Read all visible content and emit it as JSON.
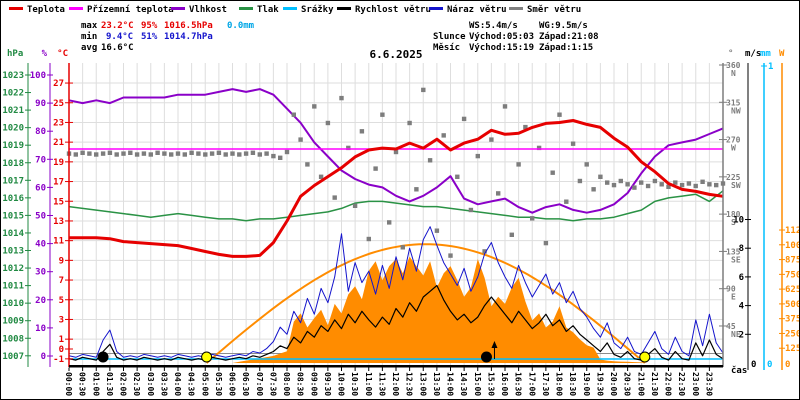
{
  "title": "6.6.2025",
  "legend": [
    {
      "label": "Teplota",
      "color": "#e60000"
    },
    {
      "label": "Přízemní teplota",
      "color": "#ff00ff"
    },
    {
      "label": "Vlhkost",
      "color": "#8a00c8"
    },
    {
      "label": "Tlak",
      "color": "#2a9245"
    },
    {
      "label": "Srážky",
      "color": "#00bfff"
    },
    {
      "label": "Rychlost větru",
      "color": "#000000"
    },
    {
      "label": "Náraz větru",
      "color": "#1414cc"
    },
    {
      "label": "Směr větru",
      "color": "#808080"
    }
  ],
  "stats": {
    "max_label": "max",
    "max_temp": "23.2°C",
    "max_hum": "95%",
    "max_pres": "1016.5hPa",
    "max_rain": "0.0mm",
    "min_label": "min",
    "min_temp": "9.4°C",
    "min_hum": "51%",
    "min_pres": "1014.7hPa",
    "avg_label": "avg",
    "avg_temp": "16.6°C",
    "ws": "WS:5.4m/s",
    "wg": "WG:9.5m/s",
    "sun_label": "Slunce",
    "sun_rise": "Východ:05:03",
    "sun_set": "Západ:21:08",
    "moon_label": "Měsíc",
    "moon_rise": "Východ:15:19",
    "moon_set": "Západ:1:15"
  },
  "xaxis": {
    "label": "čas",
    "ticks": [
      "00:00",
      "00:30",
      "01:00",
      "01:30",
      "02:00",
      "02:30",
      "03:00",
      "03:30",
      "04:00",
      "04:30",
      "05:00",
      "05:30",
      "06:00",
      "06:30",
      "07:00",
      "07:30",
      "08:00",
      "08:30",
      "09:00",
      "09:30",
      "10:00",
      "10:30",
      "11:00",
      "11:30",
      "12:00",
      "12:30",
      "13:00",
      "13:30",
      "14:00",
      "14:30",
      "15:00",
      "15:30",
      "16:00",
      "16:30",
      "17:00",
      "17:30",
      "18:00",
      "18:30",
      "19:00",
      "19:30",
      "20:00",
      "20:30",
      "21:00",
      "21:30",
      "22:00",
      "22:30",
      "23:00",
      "23:30"
    ]
  },
  "axes": {
    "hpa": {
      "title": "hPa",
      "color": "#218a43",
      "ticks": [
        1023,
        1022,
        1021,
        1020,
        1019,
        1018,
        1017,
        1016,
        1015,
        1014,
        1013,
        1012,
        1011,
        1010,
        1009,
        1008,
        1007
      ]
    },
    "percent": {
      "title": "%",
      "color": "#8a00c8",
      "ticks": [
        100,
        90,
        80,
        70,
        60,
        50,
        40,
        30,
        20,
        10,
        0
      ]
    },
    "temp_c": {
      "title": "°C",
      "color": "#e60000",
      "ticks": [
        27,
        25,
        23,
        21,
        19,
        17,
        15,
        13,
        11,
        9,
        7,
        5,
        3,
        1,
        0,
        -1
      ]
    },
    "deg": {
      "title": "°",
      "color": "#7d7d7d",
      "ticks": [
        [
          360,
          "N"
        ],
        [
          315,
          "NW"
        ],
        [
          270,
          "W"
        ],
        [
          225,
          "SW"
        ],
        [
          180,
          "S"
        ],
        [
          135,
          "SE"
        ],
        [
          90,
          "E"
        ],
        [
          45,
          "NE"
        ]
      ]
    },
    "ms": {
      "title": "m/s",
      "color": "#000000",
      "ticks": [
        10,
        8,
        6,
        4,
        2
      ]
    },
    "mm": {
      "title": "mm",
      "color": "#00bfff",
      "ticks": [
        1
      ]
    },
    "w": {
      "title": "W",
      "color": "#ff8c00",
      "ticks": [
        1125,
        1000,
        875,
        750,
        625,
        500,
        375,
        250,
        125
      ]
    }
  },
  "chart_data": {
    "type": "line",
    "x_unit": "hours",
    "x_range": [
      0,
      24
    ],
    "grid": true,
    "series": [
      {
        "name": "teplota",
        "color": "#e60000",
        "axis": "temp_c",
        "width": 3,
        "step_h": 0.5,
        "values": [
          11.3,
          11.3,
          11.3,
          11.2,
          10.9,
          10.8,
          10.7,
          10.6,
          10.5,
          10.2,
          9.9,
          9.6,
          9.4,
          9.4,
          9.5,
          10.8,
          13.0,
          15.5,
          16.6,
          17.5,
          18.4,
          19.5,
          20.2,
          20.4,
          20.3,
          20.9,
          20.4,
          21.3,
          20.2,
          20.9,
          21.3,
          22.2,
          21.8,
          21.9,
          22.5,
          22.9,
          23.0,
          23.2,
          22.8,
          22.5,
          21.4,
          20.5,
          19.0,
          18.0,
          16.8,
          16.2,
          16.0,
          15.7,
          15.5
        ]
      },
      {
        "name": "prizemni-teplota",
        "color": "#ff00ff",
        "axis": "temp_c",
        "width": 1.5,
        "step_h": 24,
        "values": [
          20.3,
          20.3
        ]
      },
      {
        "name": "vlhkost",
        "color": "#8a00c8",
        "axis": "percent",
        "width": 2,
        "step_h": 0.5,
        "values": [
          91,
          90,
          91,
          90,
          92,
          92,
          92,
          92,
          93,
          93,
          93,
          94,
          95,
          94,
          95,
          93,
          88,
          83,
          76,
          71,
          66,
          63,
          61,
          60,
          57,
          55,
          57,
          60,
          64,
          56,
          54,
          55,
          56,
          53,
          51,
          53,
          54,
          52,
          51,
          52,
          54,
          58,
          65,
          71,
          75,
          76,
          77,
          79,
          81
        ]
      },
      {
        "name": "tlak",
        "color": "#2a9245",
        "axis": "hpa",
        "width": 1.5,
        "step_h": 0.5,
        "values": [
          1015.5,
          1015.4,
          1015.3,
          1015.2,
          1015.1,
          1015.0,
          1014.9,
          1015.0,
          1015.1,
          1015.0,
          1014.9,
          1014.8,
          1014.8,
          1014.7,
          1014.8,
          1014.8,
          1014.9,
          1015.0,
          1015.1,
          1015.2,
          1015.4,
          1015.7,
          1015.8,
          1015.8,
          1015.7,
          1015.6,
          1015.5,
          1015.5,
          1015.4,
          1015.3,
          1015.2,
          1015.1,
          1015.0,
          1014.9,
          1014.9,
          1014.8,
          1014.8,
          1014.7,
          1014.8,
          1014.8,
          1014.9,
          1015.1,
          1015.3,
          1015.8,
          1016.0,
          1016.1,
          1016.2,
          1015.8,
          1016.4
        ]
      },
      {
        "name": "rychlost-vetru",
        "color": "#000000",
        "axis": "ms",
        "width": 1.2,
        "step_h": 0.25,
        "values": [
          0.3,
          0.2,
          0.4,
          0.3,
          0.2,
          0.8,
          1.3,
          0.4,
          0.2,
          0.3,
          0.2,
          0.4,
          0.3,
          0.2,
          0.3,
          0.2,
          0.4,
          0.3,
          0.2,
          0.3,
          0.2,
          0.4,
          0.3,
          0.2,
          0.3,
          0.4,
          0.3,
          0.5,
          0.4,
          0.6,
          0.8,
          1.2,
          1.0,
          1.8,
          1.4,
          2.2,
          1.8,
          2.6,
          2.2,
          3.0,
          2.4,
          3.4,
          2.8,
          3.6,
          3.0,
          2.5,
          3.2,
          2.7,
          3.8,
          3.2,
          4.2,
          3.6,
          4.6,
          5.0,
          5.4,
          4.4,
          3.6,
          3.0,
          3.4,
          2.8,
          3.2,
          4.0,
          4.6,
          4.0,
          3.4,
          2.8,
          3.6,
          3.0,
          2.4,
          2.8,
          3.4,
          2.6,
          3.0,
          2.2,
          2.6,
          2.0,
          1.6,
          1.2,
          0.8,
          1.4,
          0.6,
          0.4,
          0.8,
          0.3,
          0.2,
          0.6,
          1.0,
          0.4,
          0.2,
          0.8,
          0.3,
          0.2,
          1.4,
          0.5,
          1.6,
          0.6,
          0.3
        ]
      },
      {
        "name": "naraz-vetru",
        "color": "#1414cc",
        "axis": "ms",
        "width": 1,
        "step_h": 0.25,
        "values": [
          0.5,
          0.4,
          0.6,
          0.5,
          0.4,
          1.6,
          2.3,
          0.8,
          0.4,
          0.5,
          0.4,
          0.6,
          0.5,
          0.4,
          0.5,
          0.4,
          0.6,
          0.5,
          0.4,
          0.5,
          0.4,
          0.6,
          0.5,
          0.4,
          0.5,
          0.6,
          0.5,
          0.8,
          0.7,
          1.0,
          1.5,
          2.5,
          2.0,
          3.6,
          2.8,
          4.5,
          3.4,
          5.2,
          4.2,
          6.0,
          9.0,
          5.0,
          7.0,
          5.6,
          6.4,
          4.8,
          6.8,
          5.2,
          7.4,
          5.8,
          8.0,
          6.4,
          8.6,
          9.5,
          8.2,
          7.0,
          6.2,
          5.4,
          6.6,
          5.0,
          6.0,
          7.6,
          8.4,
          7.0,
          6.0,
          5.2,
          6.8,
          5.6,
          4.6,
          5.4,
          6.2,
          4.8,
          5.6,
          4.2,
          5.0,
          3.8,
          3.2,
          2.4,
          1.8,
          2.8,
          1.4,
          1.0,
          1.8,
          0.8,
          0.6,
          1.4,
          2.2,
          1.0,
          0.6,
          1.8,
          0.8,
          0.5,
          3.0,
          1.2,
          3.4,
          1.4,
          0.7
        ]
      },
      {
        "name": "srazky",
        "color": "#00bfff",
        "axis": "mm",
        "width": 1.5,
        "step_h": 12,
        "values": [
          0,
          0,
          0
        ]
      },
      {
        "name": "radiace",
        "color": "#ff8c00",
        "axis": "w",
        "fill": true,
        "step_h": 0.25,
        "values": [
          0,
          0,
          0,
          0,
          0,
          0,
          0,
          0,
          0,
          0,
          0,
          0,
          0,
          0,
          0,
          0,
          0,
          0,
          0,
          0,
          0,
          0,
          0,
          0,
          0,
          10,
          20,
          30,
          40,
          50,
          60,
          80,
          100,
          350,
          420,
          300,
          380,
          450,
          320,
          500,
          420,
          580,
          650,
          540,
          780,
          860,
          700,
          820,
          880,
          760,
          900,
          820,
          740,
          860,
          640,
          760,
          820,
          700,
          560,
          640,
          880,
          720,
          480,
          560,
          500,
          640,
          720,
          520,
          360,
          420,
          300,
          350,
          480,
          300,
          260,
          200,
          150,
          130,
          30,
          20,
          15,
          12,
          10,
          8,
          5,
          0,
          0,
          0,
          0,
          0,
          0,
          0,
          0,
          0,
          0,
          0,
          0
        ]
      }
    ],
    "scatter": {
      "name": "smer-vetru",
      "color": "#7d7d7d",
      "axis": "deg",
      "points": [
        [
          0,
          253
        ],
        [
          0.25,
          252
        ],
        [
          0.5,
          254
        ],
        [
          0.75,
          253
        ],
        [
          1,
          252
        ],
        [
          1.25,
          253
        ],
        [
          1.5,
          254
        ],
        [
          1.75,
          252
        ],
        [
          2,
          253
        ],
        [
          2.25,
          254
        ],
        [
          2.5,
          252
        ],
        [
          2.75,
          253
        ],
        [
          3,
          252
        ],
        [
          3.25,
          254
        ],
        [
          3.5,
          253
        ],
        [
          3.75,
          252
        ],
        [
          4,
          253
        ],
        [
          4.25,
          252
        ],
        [
          4.5,
          254
        ],
        [
          4.75,
          253
        ],
        [
          5,
          252
        ],
        [
          5.25,
          253
        ],
        [
          5.5,
          254
        ],
        [
          5.75,
          252
        ],
        [
          6,
          253
        ],
        [
          6.25,
          252
        ],
        [
          6.5,
          253
        ],
        [
          6.75,
          254
        ],
        [
          7,
          252
        ],
        [
          7.25,
          253
        ],
        [
          7.5,
          250
        ],
        [
          7.75,
          248
        ],
        [
          8,
          255
        ],
        [
          8.25,
          300
        ],
        [
          8.5,
          270
        ],
        [
          8.75,
          240
        ],
        [
          9,
          310
        ],
        [
          9.25,
          225
        ],
        [
          9.5,
          290
        ],
        [
          9.75,
          200
        ],
        [
          10,
          320
        ],
        [
          10.25,
          260
        ],
        [
          10.5,
          190
        ],
        [
          10.75,
          280
        ],
        [
          11,
          150
        ],
        [
          11.25,
          235
        ],
        [
          11.5,
          300
        ],
        [
          11.75,
          170
        ],
        [
          12,
          255
        ],
        [
          12.25,
          140
        ],
        [
          12.5,
          290
        ],
        [
          12.75,
          210
        ],
        [
          13,
          330
        ],
        [
          13.25,
          245
        ],
        [
          13.5,
          160
        ],
        [
          13.75,
          275
        ],
        [
          14,
          130
        ],
        [
          14.25,
          225
        ],
        [
          14.5,
          295
        ],
        [
          14.75,
          185
        ],
        [
          15,
          250
        ],
        [
          15.25,
          135
        ],
        [
          15.5,
          270
        ],
        [
          15.75,
          205
        ],
        [
          16,
          310
        ],
        [
          16.25,
          155
        ],
        [
          16.5,
          240
        ],
        [
          16.75,
          285
        ],
        [
          17,
          175
        ],
        [
          17.25,
          260
        ],
        [
          17.5,
          145
        ],
        [
          17.75,
          230
        ],
        [
          18,
          300
        ],
        [
          18.25,
          195
        ],
        [
          18.5,
          265
        ],
        [
          18.75,
          220
        ],
        [
          19,
          240
        ],
        [
          19.25,
          210
        ],
        [
          19.5,
          225
        ],
        [
          19.75,
          218
        ],
        [
          20,
          215
        ],
        [
          20.25,
          220
        ],
        [
          20.5,
          216
        ],
        [
          20.75,
          212
        ],
        [
          21,
          218
        ],
        [
          21.25,
          214
        ],
        [
          21.5,
          220
        ],
        [
          21.75,
          216
        ],
        [
          22,
          213
        ],
        [
          22.25,
          218
        ],
        [
          22.5,
          215
        ],
        [
          22.75,
          217
        ],
        [
          23,
          214
        ],
        [
          23.25,
          219
        ],
        [
          23.5,
          216
        ],
        [
          23.75,
          215
        ],
        [
          24,
          217
        ]
      ]
    },
    "solar_theoretical": {
      "color": "#ff8c00",
      "sunrise_h": 5.05,
      "sunset_h": 21.13,
      "peak_w": 1005
    },
    "zero_line": {
      "color": "#8c8c8c"
    },
    "markers": [
      {
        "name": "moonset-marker",
        "shape": "circle",
        "color": "#000000",
        "h": 1.25
      },
      {
        "name": "sunrise-marker",
        "shape": "circle",
        "color": "#ffff00",
        "h": 5.05
      },
      {
        "name": "moonrise-marker",
        "shape": "circle",
        "color": "#000000",
        "h": 15.32,
        "arrow": "up"
      },
      {
        "name": "sunset-marker",
        "shape": "circle",
        "color": "#ffff00",
        "h": 21.13
      }
    ]
  }
}
